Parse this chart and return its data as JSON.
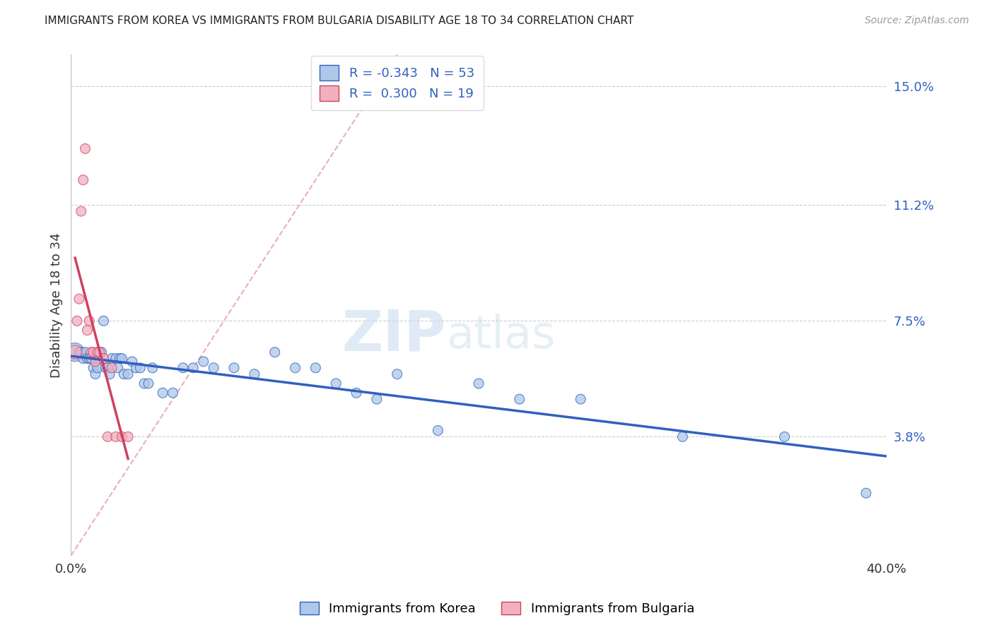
{
  "title": "IMMIGRANTS FROM KOREA VS IMMIGRANTS FROM BULGARIA DISABILITY AGE 18 TO 34 CORRELATION CHART",
  "source": "Source: ZipAtlas.com",
  "ylabel_label": "Disability Age 18 to 34",
  "legend_korea": "Immigrants from Korea",
  "legend_bulgaria": "Immigrants from Bulgaria",
  "R_korea": -0.343,
  "N_korea": 53,
  "R_bulgaria": 0.3,
  "N_bulgaria": 19,
  "xlim": [
    0.0,
    0.4
  ],
  "ylim": [
    0.0,
    0.16
  ],
  "yticks_right": [
    0.038,
    0.075,
    0.112,
    0.15
  ],
  "ytick_labels_right": [
    "3.8%",
    "7.5%",
    "11.2%",
    "15.0%"
  ],
  "color_korea": "#adc8e8",
  "color_bulgaria": "#f0b0c0",
  "color_korea_line": "#3060c0",
  "color_bulgaria_line": "#d04060",
  "color_diag": "#e8b0b8",
  "watermark_zip": "ZIP",
  "watermark_atlas": "atlas",
  "korea_scatter_x": [
    0.002,
    0.004,
    0.005,
    0.006,
    0.007,
    0.008,
    0.009,
    0.01,
    0.011,
    0.012,
    0.012,
    0.013,
    0.014,
    0.015,
    0.016,
    0.017,
    0.018,
    0.019,
    0.02,
    0.022,
    0.023,
    0.024,
    0.025,
    0.026,
    0.028,
    0.03,
    0.032,
    0.034,
    0.036,
    0.038,
    0.04,
    0.045,
    0.05,
    0.055,
    0.06,
    0.065,
    0.07,
    0.08,
    0.09,
    0.1,
    0.11,
    0.12,
    0.13,
    0.14,
    0.15,
    0.16,
    0.18,
    0.2,
    0.22,
    0.25,
    0.3,
    0.35,
    0.39
  ],
  "korea_scatter_y": [
    0.065,
    0.065,
    0.065,
    0.063,
    0.065,
    0.063,
    0.063,
    0.063,
    0.06,
    0.058,
    0.063,
    0.06,
    0.063,
    0.065,
    0.075,
    0.06,
    0.06,
    0.058,
    0.063,
    0.063,
    0.06,
    0.063,
    0.063,
    0.058,
    0.058,
    0.062,
    0.06,
    0.06,
    0.055,
    0.055,
    0.06,
    0.052,
    0.052,
    0.06,
    0.06,
    0.062,
    0.06,
    0.06,
    0.058,
    0.065,
    0.06,
    0.06,
    0.055,
    0.052,
    0.05,
    0.058,
    0.04,
    0.055,
    0.05,
    0.05,
    0.038,
    0.038,
    0.02
  ],
  "bulgaria_scatter_x": [
    0.002,
    0.003,
    0.004,
    0.005,
    0.006,
    0.007,
    0.008,
    0.009,
    0.01,
    0.011,
    0.012,
    0.013,
    0.014,
    0.016,
    0.018,
    0.02,
    0.022,
    0.025,
    0.028
  ],
  "bulgaria_scatter_y": [
    0.065,
    0.075,
    0.082,
    0.11,
    0.12,
    0.13,
    0.072,
    0.075,
    0.065,
    0.065,
    0.062,
    0.065,
    0.065,
    0.063,
    0.038,
    0.06,
    0.038,
    0.038,
    0.038
  ],
  "korea_dot_sizes": [
    350,
    100,
    100,
    100,
    100,
    100,
    100,
    100,
    100,
    100,
    100,
    100,
    100,
    100,
    100,
    100,
    100,
    100,
    100,
    100,
    100,
    100,
    100,
    100,
    100,
    100,
    100,
    100,
    100,
    100,
    100,
    100,
    100,
    100,
    100,
    100,
    100,
    100,
    100,
    100,
    100,
    100,
    100,
    100,
    100,
    100,
    100,
    100,
    100,
    100,
    100,
    100,
    100
  ],
  "bulgaria_dot_sizes": [
    200,
    100,
    100,
    100,
    100,
    100,
    100,
    100,
    100,
    100,
    100,
    100,
    100,
    100,
    100,
    100,
    100,
    100,
    100
  ]
}
